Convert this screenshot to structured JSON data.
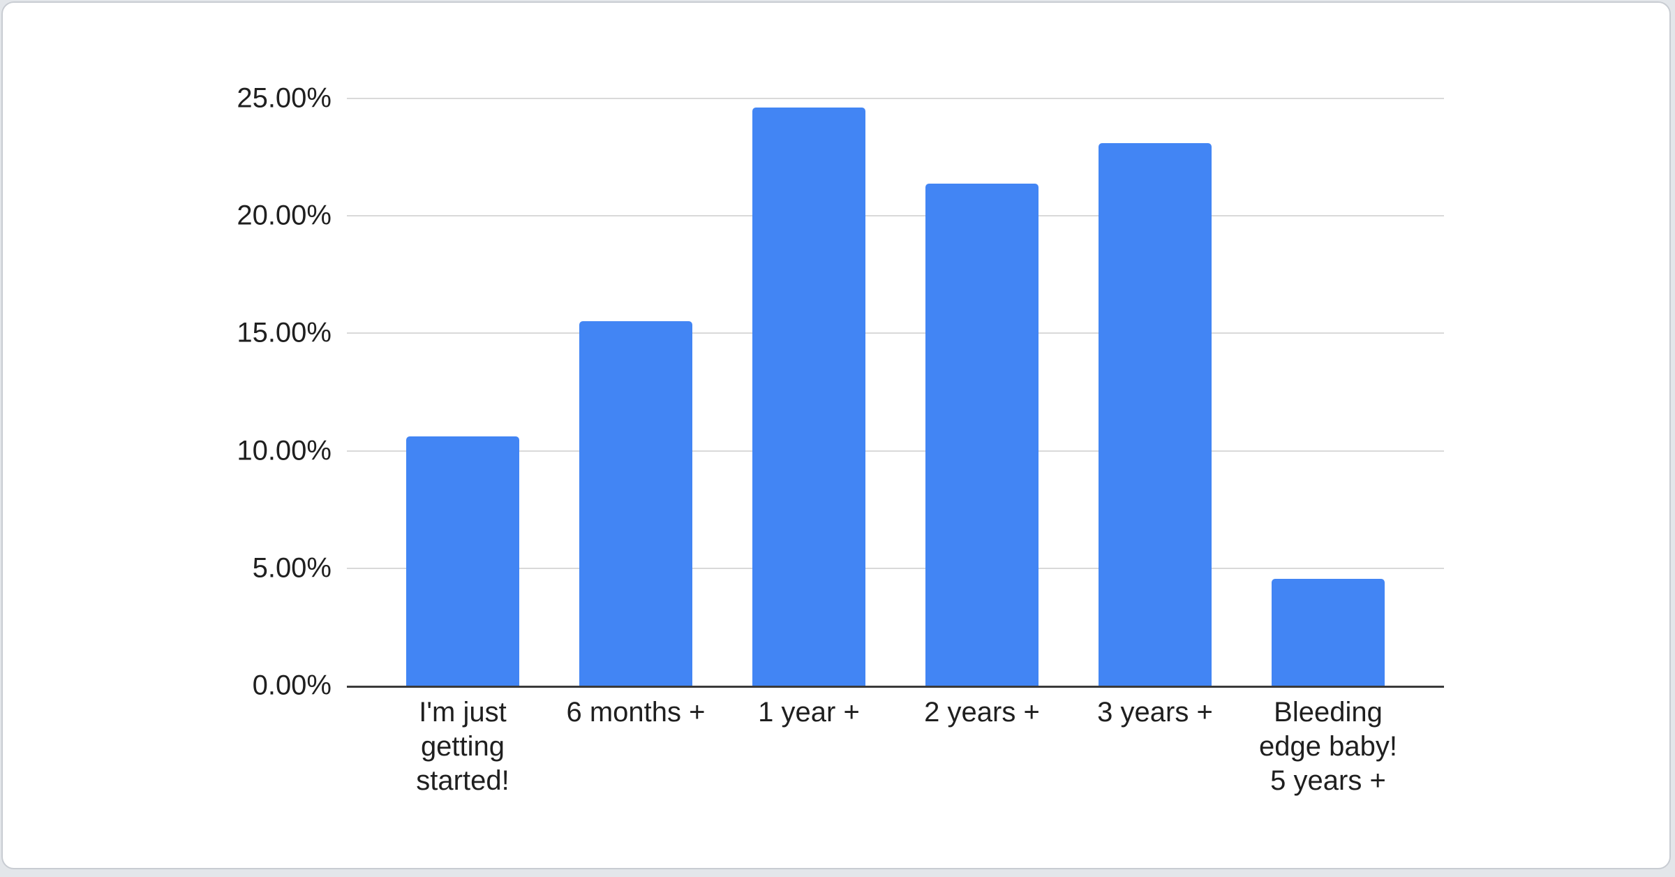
{
  "chart_data": {
    "type": "bar",
    "title": "",
    "xlabel": "",
    "ylabel": "",
    "categories": [
      "I'm just getting started!",
      "6 months +",
      "1 year +",
      "2 years +",
      "3 years +",
      "Bleeding edge baby! 5 years +"
    ],
    "category_display": [
      "I'm just\ngetting\nstarted!",
      "6 months +",
      "1 year +",
      "2 years +",
      "3 years +",
      "Bleeding\nedge baby!\n5 years +"
    ],
    "values": [
      10.61,
      15.53,
      24.62,
      21.36,
      23.11,
      4.55
    ],
    "unit": "%",
    "ylim": [
      0,
      25
    ],
    "yticks": [
      0,
      5,
      10,
      15,
      20,
      25
    ],
    "ytick_labels": [
      "0.00%",
      "5.00%",
      "10.00%",
      "15.00%",
      "20.00%",
      "25.00%"
    ],
    "grid": true,
    "legend": "none",
    "colors": {
      "bar": "#4285f4",
      "axis_line": "#3a3a3a",
      "gridline": "#d9d9d9",
      "tick_text": "#1f1f1f",
      "card_background": "#ffffff",
      "card_border": "#c8ccd2",
      "page_background": "#e3e6ea"
    }
  }
}
